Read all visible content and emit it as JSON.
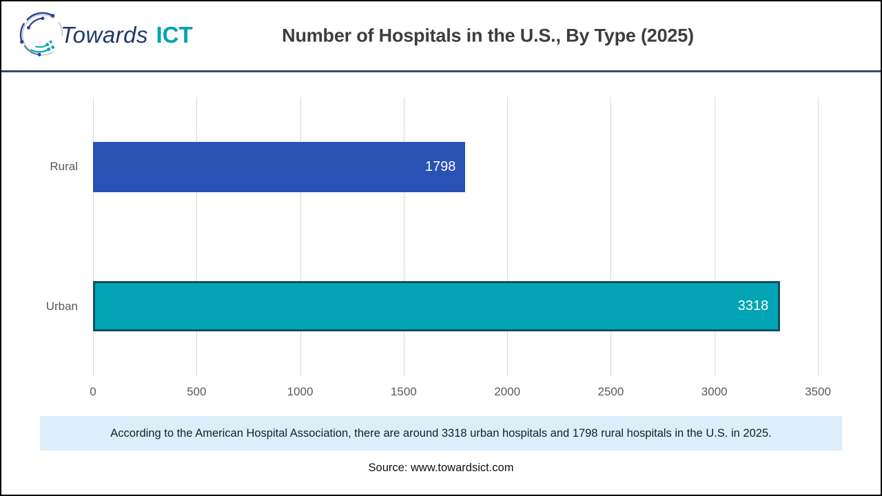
{
  "colors": {
    "page_border": "#000000",
    "header_rule": "#2e4a78",
    "title_text": "#3d3d3d",
    "logo_navy": "#27418f",
    "logo_teal": "#00a3b4",
    "logo_gray": "#c3cad3"
  },
  "logo": {
    "towards": "Towards",
    "ict": "ICT"
  },
  "header": {
    "title": "Number of Hospitals in the U.S., By Type (2025)"
  },
  "chart_data": {
    "type": "bar",
    "orientation": "horizontal",
    "title": "Number of Hospitals in the U.S., By Type (2025)",
    "categories": [
      "Rural",
      "Urban"
    ],
    "values": [
      1798,
      3318
    ],
    "bar_colors": [
      "#2a52b5",
      "#02a4b5"
    ],
    "bar_borders": [
      "none",
      "#11505e"
    ],
    "value_label_color": "#ffffff",
    "xlabel": "",
    "ylabel": "",
    "xlim": [
      0,
      3500
    ],
    "ticks": [
      0,
      500,
      1000,
      1500,
      2000,
      2500,
      3000,
      3500
    ],
    "grid": "vertical",
    "gridline_color": "#d9d9d9",
    "axis_label_color": "#595959",
    "legend": "none"
  },
  "note": {
    "text": "According to the American Hospital Association, there are around 3318 urban hospitals and 1798 rural hospitals in the U.S. in 2025.",
    "background": "#ddeefa"
  },
  "source": {
    "text": "Source: www.towardsict.com"
  }
}
